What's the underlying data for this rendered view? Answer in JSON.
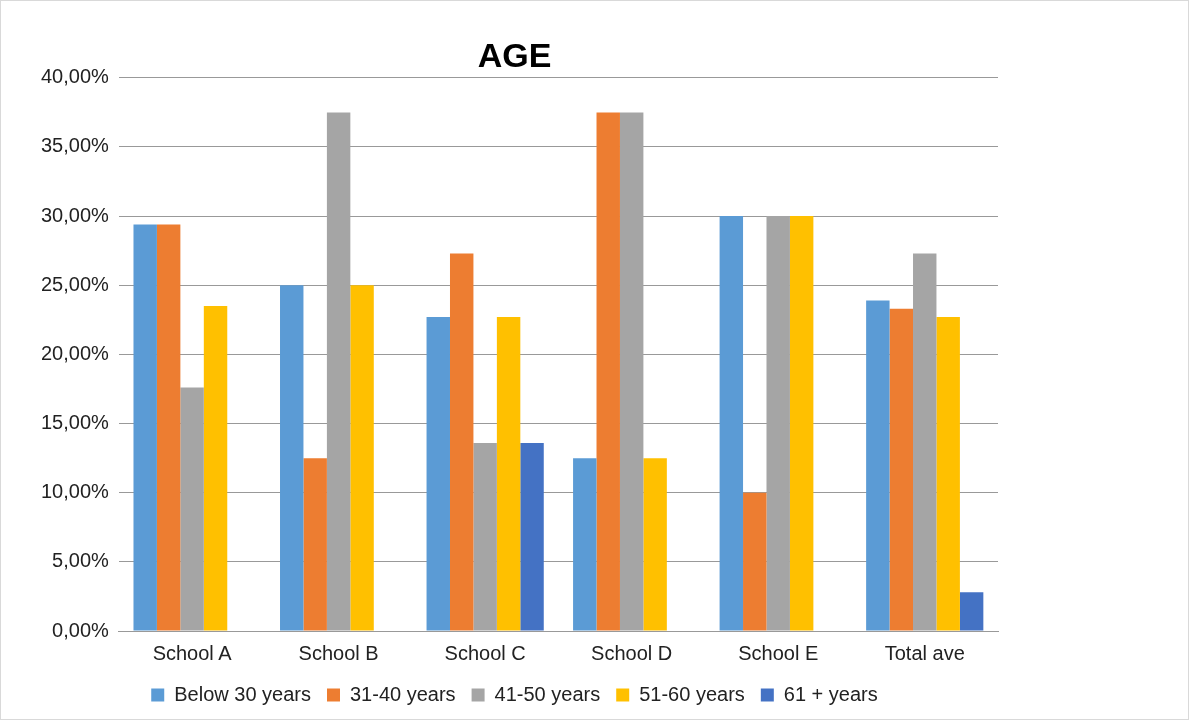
{
  "chart_data": {
    "type": "bar",
    "title": "AGE",
    "categories": [
      "School A",
      "School B",
      "School C",
      "School D",
      "School E",
      "Total ave"
    ],
    "series": [
      {
        "name": "Below 30 years",
        "color": "#5b9bd5",
        "values": [
          29.4,
          25,
          22.7,
          12.5,
          30,
          23.9
        ]
      },
      {
        "name": "31-40 years",
        "color": "#ed7d31",
        "values": [
          29.4,
          12.5,
          27.3,
          37.5,
          10,
          23.3
        ]
      },
      {
        "name": "41-50 years",
        "color": "#a5a5a5",
        "values": [
          17.6,
          37.5,
          13.6,
          37.5,
          30,
          27.3
        ]
      },
      {
        "name": "51-60 years",
        "color": "#ffc000",
        "values": [
          23.5,
          25,
          22.7,
          12.5,
          30,
          22.7
        ]
      },
      {
        "name": "61 + years",
        "color": "#4472c4",
        "values": [
          0,
          0,
          13.6,
          0,
          0,
          2.8
        ]
      }
    ],
    "ylim": [
      0,
      40
    ],
    "yticks": [
      {
        "value": 0,
        "label": "0,00%"
      },
      {
        "value": 5,
        "label": "5,00%"
      },
      {
        "value": 10,
        "label": "10,00%"
      },
      {
        "value": 15,
        "label": "15,00%"
      },
      {
        "value": 20,
        "label": "20,00%"
      },
      {
        "value": 25,
        "label": "25,00%"
      },
      {
        "value": 30,
        "label": "30,00%"
      },
      {
        "value": 35,
        "label": "35,00%"
      },
      {
        "value": 40,
        "label": "40,00%"
      }
    ],
    "grid": "y",
    "legend": "bottom"
  }
}
